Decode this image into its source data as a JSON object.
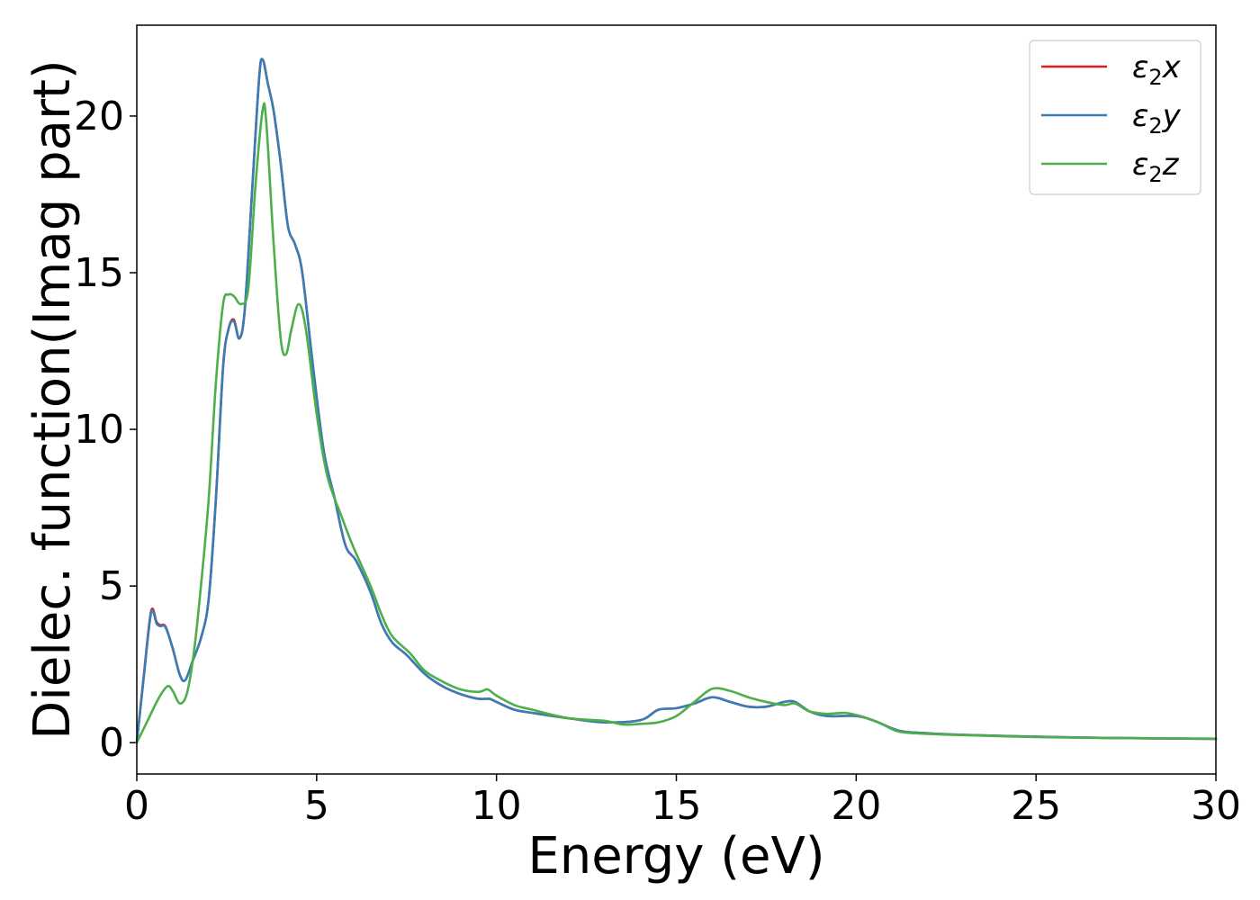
{
  "chart_data": {
    "type": "line",
    "xlabel": "Energy (eV)",
    "ylabel": "Dielec. function(Imag part)",
    "xlim": [
      0,
      30
    ],
    "ylim": [
      -1.0,
      22.9
    ],
    "xticks": [
      0,
      5,
      10,
      15,
      20,
      25,
      30
    ],
    "yticks": [
      0,
      5,
      10,
      15,
      20
    ],
    "grid": false,
    "legend_position": "top-right",
    "series": [
      {
        "name": "ε2x",
        "legend_base": "ε",
        "legend_sub": "2",
        "legend_var": "x",
        "color": "#e41a1c",
        "points": [
          [
            0,
            0
          ],
          [
            0.2,
            2.2
          ],
          [
            0.4,
            4.2
          ],
          [
            0.55,
            3.85
          ],
          [
            0.65,
            3.75
          ],
          [
            0.8,
            3.7
          ],
          [
            1.0,
            3.0
          ],
          [
            1.2,
            2.15
          ],
          [
            1.35,
            2.0
          ],
          [
            1.55,
            2.6
          ],
          [
            1.8,
            3.4
          ],
          [
            2.0,
            4.6
          ],
          [
            2.2,
            7.8
          ],
          [
            2.4,
            12.0
          ],
          [
            2.55,
            13.2
          ],
          [
            2.7,
            13.5
          ],
          [
            2.85,
            12.9
          ],
          [
            3.0,
            13.8
          ],
          [
            3.2,
            17.5
          ],
          [
            3.4,
            21.2
          ],
          [
            3.5,
            21.8
          ],
          [
            3.65,
            21.0
          ],
          [
            3.8,
            20.2
          ],
          [
            4.0,
            18.5
          ],
          [
            4.2,
            16.5
          ],
          [
            4.4,
            15.9
          ],
          [
            4.6,
            15.0
          ],
          [
            4.9,
            12.0
          ],
          [
            5.2,
            9.3
          ],
          [
            5.5,
            7.8
          ],
          [
            5.8,
            6.3
          ],
          [
            6.1,
            5.8
          ],
          [
            6.5,
            4.8
          ],
          [
            6.8,
            3.8
          ],
          [
            7.1,
            3.2
          ],
          [
            7.5,
            2.8
          ],
          [
            8.0,
            2.2
          ],
          [
            8.5,
            1.8
          ],
          [
            9.0,
            1.55
          ],
          [
            9.5,
            1.4
          ],
          [
            9.8,
            1.4
          ],
          [
            10.0,
            1.3
          ],
          [
            10.5,
            1.05
          ],
          [
            11.0,
            0.95
          ],
          [
            12.0,
            0.78
          ],
          [
            13.0,
            0.65
          ],
          [
            14.0,
            0.72
          ],
          [
            14.5,
            1.05
          ],
          [
            15.0,
            1.1
          ],
          [
            15.5,
            1.25
          ],
          [
            16.0,
            1.45
          ],
          [
            16.5,
            1.3
          ],
          [
            17.0,
            1.15
          ],
          [
            17.5,
            1.15
          ],
          [
            18.0,
            1.3
          ],
          [
            18.3,
            1.3
          ],
          [
            18.7,
            1.0
          ],
          [
            19.2,
            0.85
          ],
          [
            20.0,
            0.85
          ],
          [
            20.5,
            0.7
          ],
          [
            21.2,
            0.38
          ],
          [
            22.0,
            0.3
          ],
          [
            23.0,
            0.25
          ],
          [
            25.0,
            0.19
          ],
          [
            27.0,
            0.15
          ],
          [
            30.0,
            0.12
          ]
        ]
      },
      {
        "name": "ε2y",
        "legend_base": "ε",
        "legend_sub": "2",
        "legend_var": "y",
        "color": "#377eb8",
        "points": [
          [
            0,
            0
          ],
          [
            0.2,
            2.15
          ],
          [
            0.4,
            4.15
          ],
          [
            0.55,
            3.8
          ],
          [
            0.65,
            3.72
          ],
          [
            0.8,
            3.68
          ],
          [
            1.0,
            3.0
          ],
          [
            1.2,
            2.15
          ],
          [
            1.35,
            2.0
          ],
          [
            1.55,
            2.6
          ],
          [
            1.8,
            3.4
          ],
          [
            2.0,
            4.6
          ],
          [
            2.2,
            7.8
          ],
          [
            2.4,
            12.0
          ],
          [
            2.55,
            13.2
          ],
          [
            2.7,
            13.45
          ],
          [
            2.85,
            12.9
          ],
          [
            3.0,
            13.8
          ],
          [
            3.2,
            17.5
          ],
          [
            3.4,
            21.2
          ],
          [
            3.5,
            21.8
          ],
          [
            3.65,
            21.0
          ],
          [
            3.8,
            20.2
          ],
          [
            4.0,
            18.5
          ],
          [
            4.2,
            16.5
          ],
          [
            4.4,
            15.9
          ],
          [
            4.6,
            15.0
          ],
          [
            4.9,
            12.0
          ],
          [
            5.2,
            9.3
          ],
          [
            5.5,
            7.8
          ],
          [
            5.8,
            6.3
          ],
          [
            6.1,
            5.8
          ],
          [
            6.5,
            4.8
          ],
          [
            6.8,
            3.8
          ],
          [
            7.1,
            3.2
          ],
          [
            7.5,
            2.8
          ],
          [
            8.0,
            2.2
          ],
          [
            8.5,
            1.8
          ],
          [
            9.0,
            1.55
          ],
          [
            9.5,
            1.4
          ],
          [
            9.8,
            1.4
          ],
          [
            10.0,
            1.3
          ],
          [
            10.5,
            1.05
          ],
          [
            11.0,
            0.95
          ],
          [
            12.0,
            0.78
          ],
          [
            13.0,
            0.65
          ],
          [
            14.0,
            0.72
          ],
          [
            14.5,
            1.05
          ],
          [
            15.0,
            1.1
          ],
          [
            15.5,
            1.25
          ],
          [
            16.0,
            1.45
          ],
          [
            16.5,
            1.3
          ],
          [
            17.0,
            1.15
          ],
          [
            17.5,
            1.15
          ],
          [
            18.0,
            1.3
          ],
          [
            18.3,
            1.3
          ],
          [
            18.7,
            1.0
          ],
          [
            19.2,
            0.85
          ],
          [
            20.0,
            0.85
          ],
          [
            20.5,
            0.7
          ],
          [
            21.2,
            0.38
          ],
          [
            22.0,
            0.3
          ],
          [
            23.0,
            0.25
          ],
          [
            25.0,
            0.19
          ],
          [
            27.0,
            0.15
          ],
          [
            30.0,
            0.12
          ]
        ]
      },
      {
        "name": "ε2z",
        "legend_base": "ε",
        "legend_sub": "2",
        "legend_var": "z",
        "color": "#4daf4a",
        "points": [
          [
            0,
            0
          ],
          [
            0.3,
            0.7
          ],
          [
            0.6,
            1.4
          ],
          [
            0.85,
            1.8
          ],
          [
            1.0,
            1.65
          ],
          [
            1.2,
            1.25
          ],
          [
            1.4,
            1.6
          ],
          [
            1.6,
            3.0
          ],
          [
            1.8,
            5.2
          ],
          [
            2.0,
            7.8
          ],
          [
            2.2,
            11.5
          ],
          [
            2.4,
            14.0
          ],
          [
            2.55,
            14.3
          ],
          [
            2.7,
            14.25
          ],
          [
            2.9,
            14.0
          ],
          [
            3.1,
            14.5
          ],
          [
            3.3,
            17.8
          ],
          [
            3.5,
            20.2
          ],
          [
            3.6,
            19.8
          ],
          [
            3.8,
            16.0
          ],
          [
            4.0,
            12.9
          ],
          [
            4.15,
            12.4
          ],
          [
            4.3,
            13.2
          ],
          [
            4.5,
            14.0
          ],
          [
            4.7,
            13.2
          ],
          [
            5.0,
            10.5
          ],
          [
            5.3,
            8.5
          ],
          [
            5.7,
            7.2
          ],
          [
            6.0,
            6.3
          ],
          [
            6.5,
            5.0
          ],
          [
            6.8,
            4.1
          ],
          [
            7.1,
            3.4
          ],
          [
            7.6,
            2.85
          ],
          [
            8.0,
            2.3
          ],
          [
            8.5,
            1.95
          ],
          [
            9.0,
            1.7
          ],
          [
            9.5,
            1.62
          ],
          [
            9.75,
            1.7
          ],
          [
            10.0,
            1.5
          ],
          [
            10.5,
            1.2
          ],
          [
            11.0,
            1.05
          ],
          [
            12.0,
            0.78
          ],
          [
            13.0,
            0.7
          ],
          [
            13.5,
            0.58
          ],
          [
            14.0,
            0.6
          ],
          [
            14.5,
            0.65
          ],
          [
            15.0,
            0.85
          ],
          [
            15.5,
            1.3
          ],
          [
            16.0,
            1.72
          ],
          [
            16.5,
            1.65
          ],
          [
            17.0,
            1.45
          ],
          [
            17.5,
            1.3
          ],
          [
            18.0,
            1.2
          ],
          [
            18.3,
            1.25
          ],
          [
            18.7,
            1.0
          ],
          [
            19.2,
            0.92
          ],
          [
            19.7,
            0.95
          ],
          [
            20.2,
            0.82
          ],
          [
            20.7,
            0.6
          ],
          [
            21.2,
            0.35
          ],
          [
            22.0,
            0.28
          ],
          [
            23.0,
            0.24
          ],
          [
            25.0,
            0.18
          ],
          [
            27.0,
            0.15
          ],
          [
            30.0,
            0.13
          ]
        ]
      }
    ]
  }
}
